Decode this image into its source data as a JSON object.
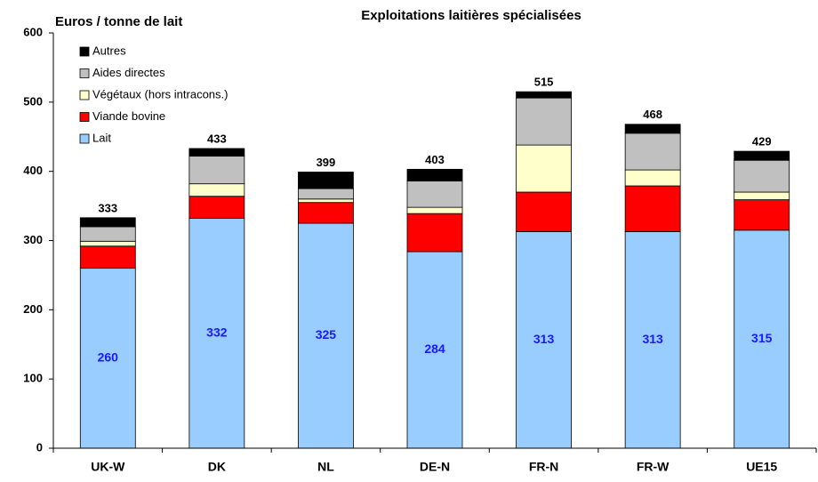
{
  "chart_data": {
    "type": "stacked_bar",
    "title": "Exploitations laitières spécialisées",
    "y_label": "Euros / tonne de lait",
    "categories": [
      "UK-W",
      "DK",
      "NL",
      "DE-N",
      "FR-N",
      "FR-W",
      "UE15"
    ],
    "series": [
      {
        "name": "Lait",
        "color": "#99ccff",
        "values": [
          260,
          332,
          325,
          284,
          313,
          313,
          315
        ]
      },
      {
        "name": "Viande bovine",
        "color": "#ff0000",
        "values": [
          32,
          32,
          30,
          55,
          57,
          66,
          44
        ]
      },
      {
        "name": "Végétaux (hors intracons.)",
        "color": "#ffffcc",
        "values": [
          7,
          18,
          5,
          9,
          68,
          23,
          11
        ]
      },
      {
        "name": "Aides directes",
        "color": "#c0c0c0",
        "values": [
          21,
          40,
          15,
          38,
          68,
          53,
          46
        ]
      },
      {
        "name": "Autres",
        "color": "#000000",
        "values": [
          13,
          11,
          24,
          17,
          9,
          13,
          13
        ]
      }
    ],
    "totals": [
      333,
      433,
      399,
      403,
      515,
      468,
      429
    ],
    "ylim": [
      0,
      600
    ],
    "yticks": [
      0,
      100,
      200,
      300,
      400,
      500,
      600
    ],
    "grid": false
  }
}
